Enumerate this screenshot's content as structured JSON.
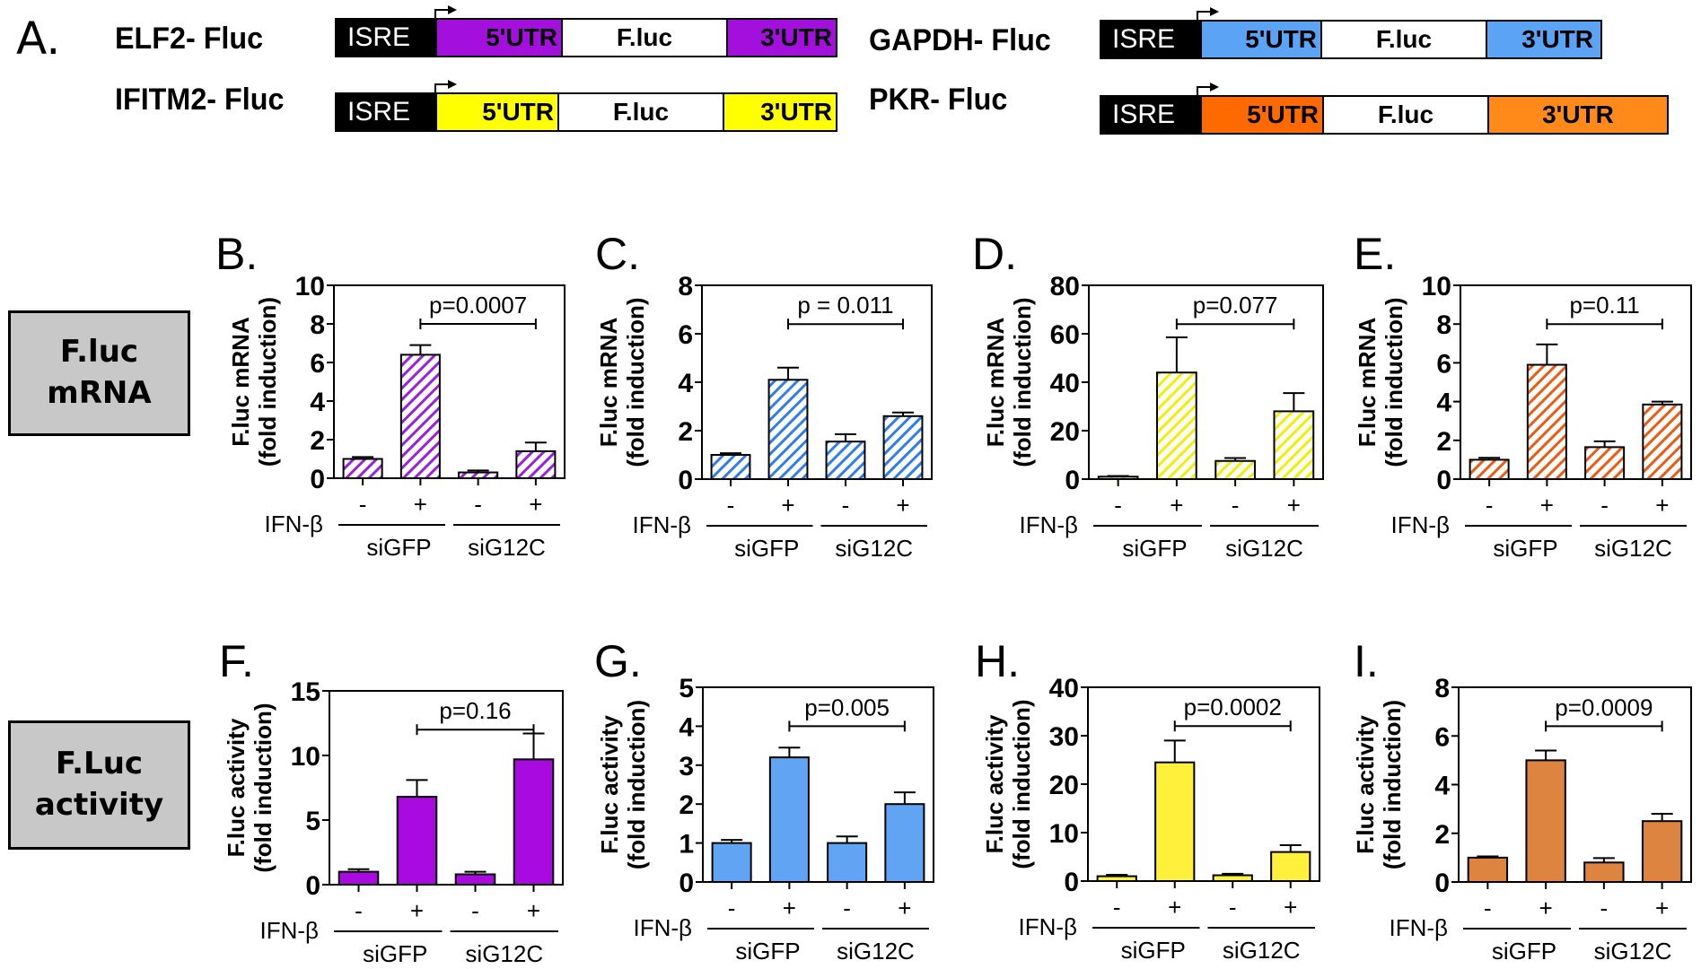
{
  "panel_a": {
    "letter": "A.",
    "constructs": [
      {
        "name": "ELF2- Fluc",
        "isre": "ISRE",
        "utr5": "5'UTR",
        "fluc": "F.luc",
        "utr3": "3'UTR",
        "color": "#a30fdc"
      },
      {
        "name": "IFITM2- Fluc",
        "isre": "ISRE",
        "utr5": "5'UTR",
        "fluc": "F.luc",
        "utr3": "3'UTR",
        "color": "#ffff00"
      },
      {
        "name": "GAPDH- Fluc",
        "isre": "ISRE",
        "utr5": "5'UTR",
        "fluc": "F.luc",
        "utr3": "3'UTR",
        "color": "#5ba3f5"
      },
      {
        "name": "PKR- Fluc",
        "isre": "ISRE",
        "utr5": "5'UTR",
        "fluc": "F.luc",
        "utr3": "3'UTR",
        "color": "#ff6a00",
        "utr3_color": "#ff8a1a"
      }
    ]
  },
  "row_labels": {
    "mrna": "F.luc\nmRNA",
    "mrna_line1": "F.luc",
    "mrna_line2": "mRNA",
    "activity_line1": "F.Luc",
    "activity_line2": "activity"
  },
  "chart_data": [
    {
      "panel": "B.",
      "type": "bar",
      "pattern": "hatched",
      "color": "#9b1fe0",
      "ylabel": [
        "F.luc mRNA",
        "(fold induction)"
      ],
      "ylim": [
        0,
        10
      ],
      "yticks": [
        0,
        2,
        4,
        6,
        8,
        10
      ],
      "categories": [
        "-",
        "+",
        "-",
        "+"
      ],
      "values": [
        1.0,
        6.4,
        0.3,
        1.4
      ],
      "errors": [
        0.1,
        0.5,
        0.1,
        0.45
      ],
      "row_label": "IFN-β",
      "groups": [
        "siGFP",
        "siG12C"
      ],
      "pvalue": "p=0.0007",
      "bracket": [
        1,
        3
      ]
    },
    {
      "panel": "C.",
      "type": "bar",
      "pattern": "hatched",
      "color": "#2f7ef0",
      "ylabel": [
        "F.luc mRNA",
        "(fold induction)"
      ],
      "ylim": [
        0,
        8
      ],
      "yticks": [
        0,
        2,
        4,
        6,
        8
      ],
      "categories": [
        "-",
        "+",
        "-",
        "+"
      ],
      "values": [
        1.0,
        4.1,
        1.55,
        2.6
      ],
      "errors": [
        0.07,
        0.5,
        0.3,
        0.15
      ],
      "row_label": "IFN-β",
      "groups": [
        "siGFP",
        "siG12C"
      ],
      "pvalue": "p = 0.011",
      "bracket": [
        1,
        3
      ]
    },
    {
      "panel": "D.",
      "type": "bar",
      "pattern": "hatched",
      "color": "#f2f000",
      "ylabel": [
        "F.luc mRNA",
        "(fold induction)"
      ],
      "ylim": [
        0,
        80
      ],
      "yticks": [
        0,
        20,
        40,
        60,
        80
      ],
      "categories": [
        "-",
        "+",
        "-",
        "+"
      ],
      "values": [
        1.0,
        44,
        7.5,
        28
      ],
      "errors": [
        0.3,
        14.5,
        1.2,
        7.5
      ],
      "row_label": "IFN-β",
      "groups": [
        "siGFP",
        "siG12C"
      ],
      "pvalue": "p=0.077",
      "bracket": [
        1,
        3
      ]
    },
    {
      "panel": "E.",
      "type": "bar",
      "pattern": "hatched",
      "color": "#f05a10",
      "ylabel": [
        "F.luc mRNA",
        "(fold induction)"
      ],
      "ylim": [
        0,
        10
      ],
      "yticks": [
        0,
        2,
        4,
        6,
        8,
        10
      ],
      "categories": [
        "-",
        "+",
        "-",
        "+"
      ],
      "values": [
        1.0,
        5.9,
        1.65,
        3.85
      ],
      "errors": [
        0.1,
        1.05,
        0.3,
        0.15
      ],
      "row_label": "IFN-β",
      "groups": [
        "siGFP",
        "siG12C"
      ],
      "pvalue": "p=0.11",
      "bracket": [
        1,
        3
      ]
    },
    {
      "panel": "F.",
      "type": "bar",
      "pattern": "solid",
      "color": "#a80ae0",
      "ylabel": [
        "F.luc activity",
        "(fold induction)"
      ],
      "ylim": [
        0,
        15
      ],
      "yticks": [
        0,
        5,
        10,
        15
      ],
      "categories": [
        "-",
        "+",
        "-",
        "+"
      ],
      "values": [
        1.0,
        6.8,
        0.8,
        9.7
      ],
      "errors": [
        0.2,
        1.3,
        0.2,
        2.0
      ],
      "row_label": "IFN-β",
      "groups": [
        "siGFP",
        "siG12C"
      ],
      "pvalue": "p=0.16",
      "bracket": [
        1,
        3
      ]
    },
    {
      "panel": "G.",
      "type": "bar",
      "pattern": "solid",
      "color": "#62a4f4",
      "ylabel": [
        "F.luc activity",
        "(fold induction)"
      ],
      "ylim": [
        0,
        5
      ],
      "yticks": [
        0,
        1,
        2,
        3,
        4,
        5
      ],
      "categories": [
        "-",
        "+",
        "-",
        "+"
      ],
      "values": [
        1.0,
        3.2,
        1.0,
        2.0
      ],
      "errors": [
        0.08,
        0.25,
        0.17,
        0.3
      ],
      "row_label": "IFN-β",
      "groups": [
        "siGFP",
        "siG12C"
      ],
      "pvalue": "p=0.005",
      "bracket": [
        1,
        3
      ]
    },
    {
      "panel": "H.",
      "type": "bar",
      "pattern": "solid",
      "color": "#fff03c",
      "ylabel": [
        "F.luc activity",
        "(fold induction)"
      ],
      "ylim": [
        0,
        40
      ],
      "yticks": [
        0,
        10,
        20,
        30,
        40
      ],
      "categories": [
        "-",
        "+",
        "-",
        "+"
      ],
      "values": [
        1.0,
        24.5,
        1.2,
        6.0
      ],
      "errors": [
        0.3,
        4.5,
        0.3,
        1.4
      ],
      "row_label": "IFN-β",
      "groups": [
        "siGFP",
        "siG12C"
      ],
      "pvalue": "p=0.0002",
      "bracket": [
        1,
        3
      ]
    },
    {
      "panel": "I.",
      "type": "bar",
      "pattern": "solid",
      "color": "#dd8440",
      "ylabel": [
        "F.luc activity",
        "(fold induction)"
      ],
      "ylim": [
        0,
        8
      ],
      "yticks": [
        0,
        2,
        4,
        6,
        8
      ],
      "categories": [
        "-",
        "+",
        "-",
        "+"
      ],
      "values": [
        1.0,
        5.0,
        0.8,
        2.5
      ],
      "errors": [
        0.05,
        0.4,
        0.18,
        0.3
      ],
      "row_label": "IFN-β",
      "groups": [
        "siGFP",
        "siG12C"
      ],
      "pvalue": "p=0.0009",
      "bracket": [
        1,
        3
      ]
    }
  ]
}
